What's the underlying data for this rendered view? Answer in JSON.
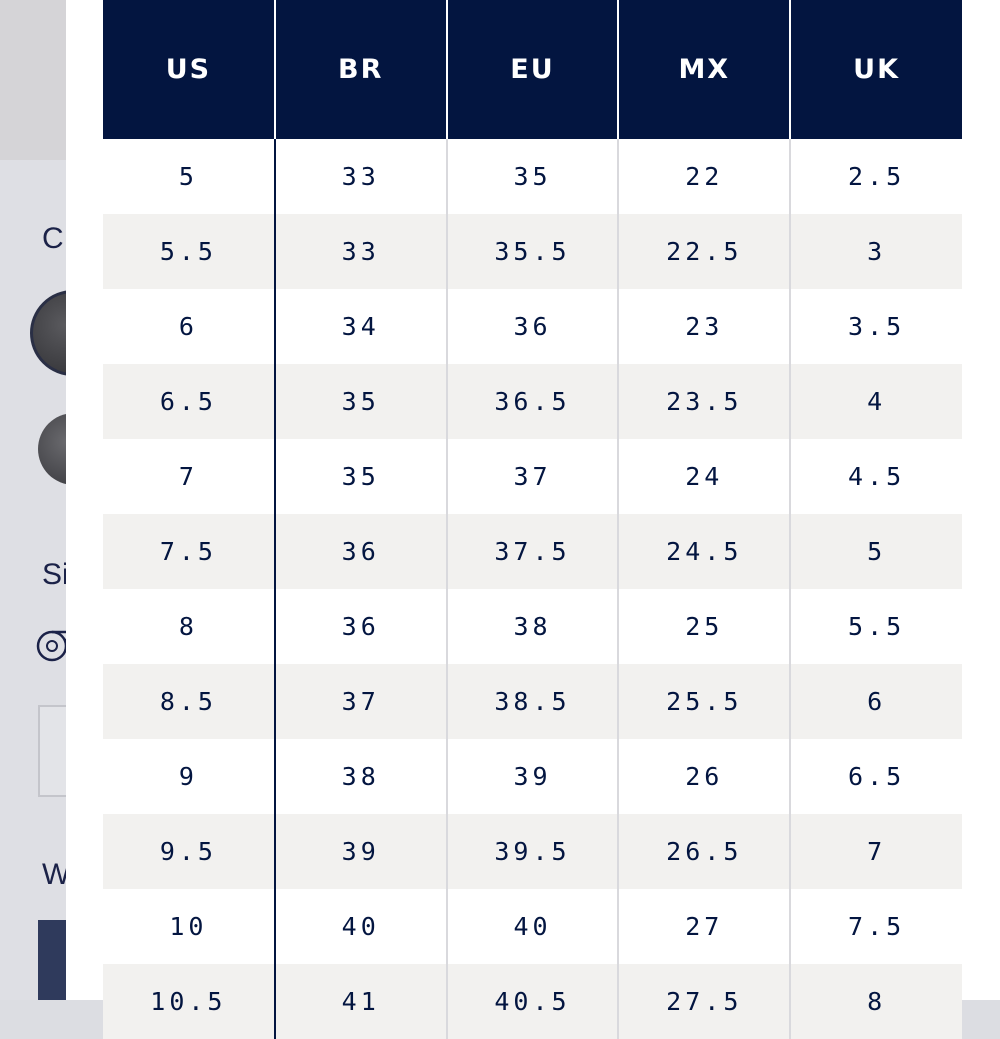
{
  "background": {
    "letters": [
      "C",
      "Si",
      "W"
    ]
  },
  "size_table": {
    "columns": [
      "US",
      "BR",
      "EU",
      "MX",
      "UK"
    ],
    "rows": [
      [
        "5",
        "33",
        "35",
        "22",
        "2.5"
      ],
      [
        "5.5",
        "33",
        "35.5",
        "22.5",
        "3"
      ],
      [
        "6",
        "34",
        "36",
        "23",
        "3.5"
      ],
      [
        "6.5",
        "35",
        "36.5",
        "23.5",
        "4"
      ],
      [
        "7",
        "35",
        "37",
        "24",
        "4.5"
      ],
      [
        "7.5",
        "36",
        "37.5",
        "24.5",
        "5"
      ],
      [
        "8",
        "36",
        "38",
        "25",
        "5.5"
      ],
      [
        "8.5",
        "37",
        "38.5",
        "25.5",
        "6"
      ],
      [
        "9",
        "38",
        "39",
        "26",
        "6.5"
      ],
      [
        "9.5",
        "39",
        "39.5",
        "26.5",
        "7"
      ],
      [
        "10",
        "40",
        "40",
        "27",
        "7.5"
      ],
      [
        "10.5",
        "41",
        "40.5",
        "27.5",
        "8"
      ]
    ]
  },
  "colors": {
    "header_bg": "#031540",
    "text": "#031540",
    "row_alt": "#f2f1ef"
  }
}
